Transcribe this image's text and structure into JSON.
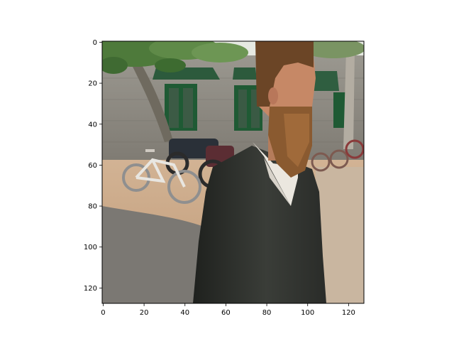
{
  "figure": {
    "image_description": "Pixelated photo: bearded man in dark grey V-neck sweater over white collared shirt, facing right, in front of a grey stone building with green windows; a white bicycle and a motorcycle parked at left; tree branches with green leaves across the top; paved ground.",
    "axes": {
      "x_ticks": [
        "0",
        "20",
        "40",
        "60",
        "80",
        "100",
        "120"
      ],
      "y_ticks": [
        "0",
        "20",
        "40",
        "60",
        "80",
        "100",
        "120"
      ],
      "x_range": [
        -0.5,
        127.5
      ],
      "y_range": [
        127.5,
        -0.5
      ],
      "frame_color": "#000000"
    },
    "palette": {
      "sky": "#e9ece6",
      "foliage": "#4f7a3c",
      "wall": "#8f8c84",
      "window_frame": "#1f5a34",
      "ground": "#c6a483",
      "pavement": "#7d7a75",
      "sweater": "#2f322e",
      "shirt": "#ece8e2",
      "hair": "#6b4526",
      "skin": "#c98a68",
      "beard": "#8a5a30"
    }
  }
}
